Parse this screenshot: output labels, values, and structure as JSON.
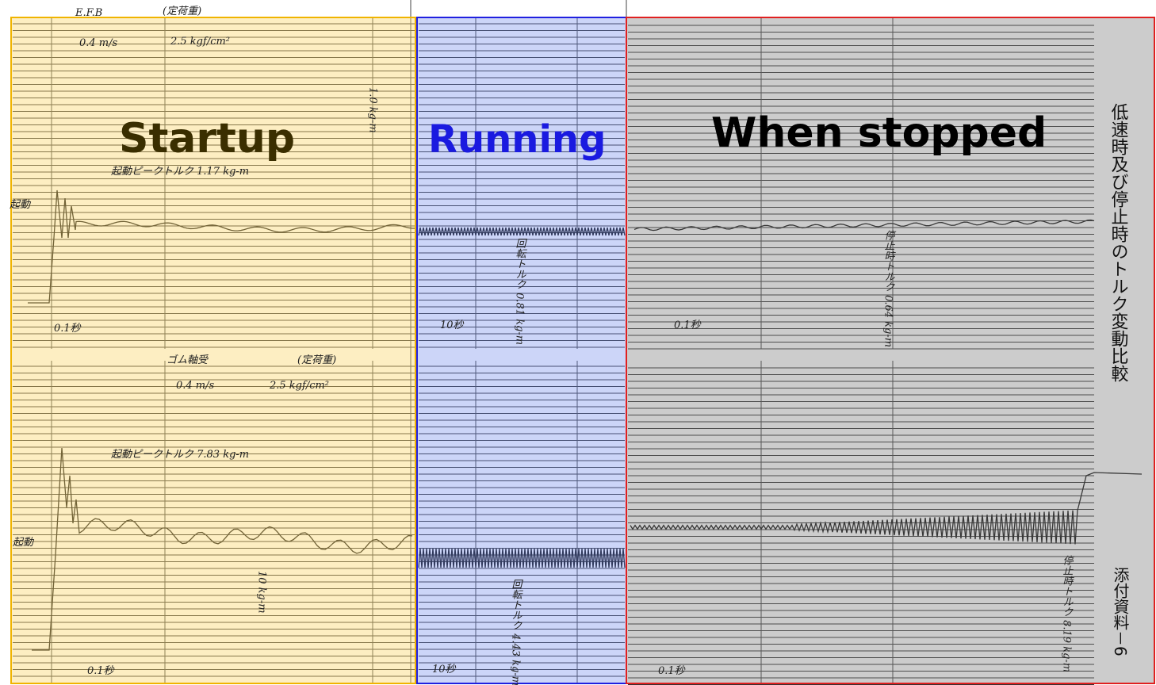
{
  "header": {
    "label": "E.F.B",
    "condition": "(定荷重)"
  },
  "panels": [
    {
      "title": "Startup"
    },
    {
      "title": "Running"
    },
    {
      "title": "When stopped"
    }
  ],
  "side_title": "低速時及び停止時のトルク変動比較",
  "attachment": "添付資料－6",
  "upper_chart": {
    "speed": "0.4 m/s",
    "pressure": "2.5 kgf/cm²",
    "peak": "起動ピークトルク 1.17 kg-m",
    "start": "起動",
    "scale_fast": "0.1秒",
    "scale_slow": "10秒",
    "running_torque": "回転トルク 0.81 kg-m",
    "stop_torque": "停止時トルク 0.64 kg-m",
    "full_scale": "1.0 kg-m"
  },
  "lower_chart": {
    "bearing": "ゴム軸受",
    "condition": "(定荷重)",
    "speed": "0.4 m/s",
    "pressure": "2.5 kgf/cm²",
    "peak": "起動ピークトルク 7.83 kg-m",
    "start": "起動",
    "scale_fast": "0.1秒",
    "scale_slow": "10秒",
    "running_torque": "回転トルク 4.43 kg-m",
    "stop_torque": "停止時トルク 8.19 kg-m",
    "full_scale": "10 kg-m"
  }
}
